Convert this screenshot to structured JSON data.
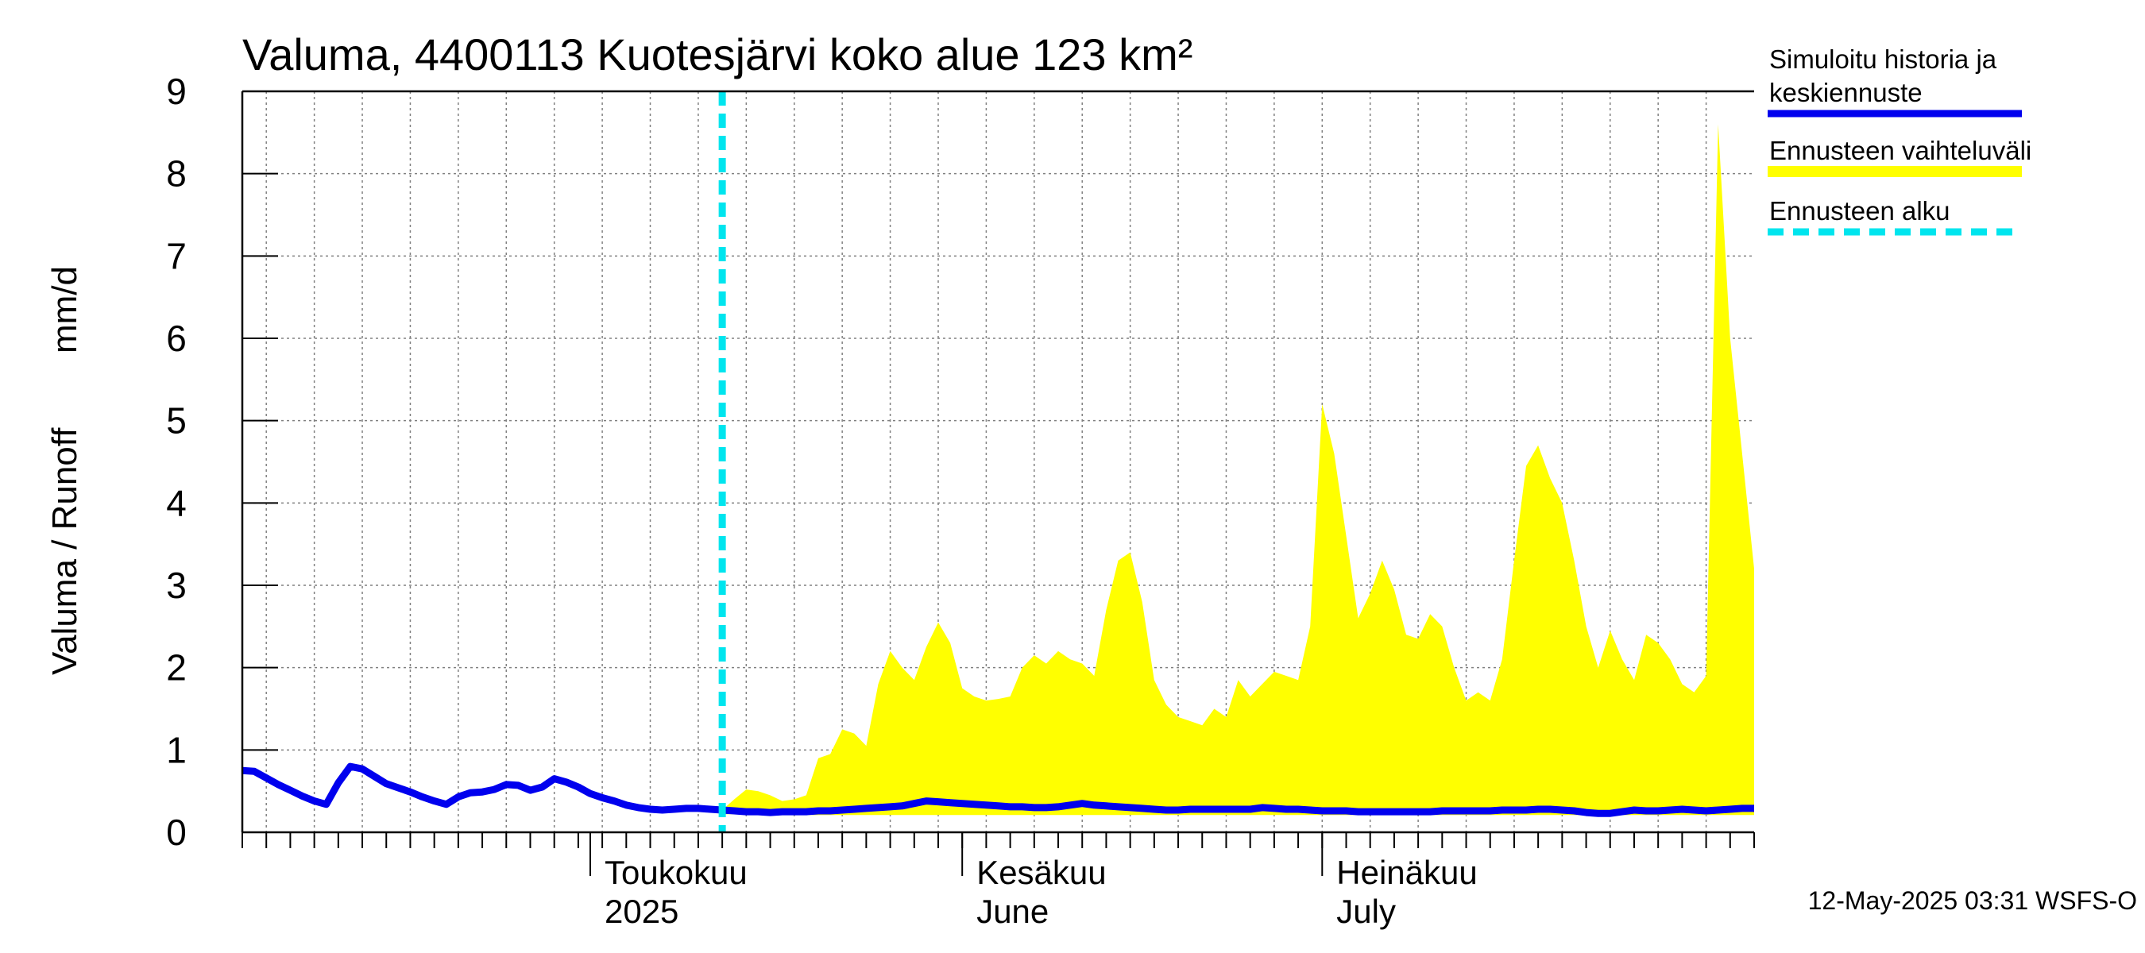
{
  "chart_data": {
    "type": "area",
    "title": "Valuma, 4400113 Kuotesjärvi koko alue 123 km²",
    "ylabel_fi": "Valuma / Runoff",
    "ylabel_unit": "mm/d",
    "ylim": [
      0,
      9
    ],
    "yticks": [
      "0",
      "1",
      "2",
      "3",
      "4",
      "5",
      "6",
      "7",
      "8",
      "9"
    ],
    "xlim": [
      "2025-04-02",
      "2025-07-31"
    ],
    "month_labels": [
      {
        "line1": "Toukokuu",
        "line2": "2025",
        "date": "2025-05-01"
      },
      {
        "line1": "Kesäkuu",
        "line2": "June",
        "date": "2025-06-01"
      },
      {
        "line1": "Heinäkuu",
        "line2": "July",
        "date": "2025-07-01"
      }
    ],
    "forecast_start": "2025-05-12",
    "grid": true,
    "legend_position": "right",
    "legend": [
      {
        "label_line1": "Simuloitu historia ja",
        "label_line2": "keskiennuste",
        "color": "#0000ee",
        "style": "solid"
      },
      {
        "label_line1": "Ennusteen vaihteluväli",
        "label_line2": "",
        "color": "#ffff00",
        "style": "band"
      },
      {
        "label_line1": "Ennusteen alku",
        "label_line2": "",
        "color": "#00e5ee",
        "style": "dashed"
      }
    ],
    "series": [
      {
        "name": "Simuloitu historia ja keskiennuste",
        "color": "#0000ee",
        "points": [
          [
            "2025-04-02",
            0.75
          ],
          [
            "2025-04-03",
            0.74
          ],
          [
            "2025-04-04",
            0.66
          ],
          [
            "2025-04-05",
            0.58
          ],
          [
            "2025-04-06",
            0.51
          ],
          [
            "2025-04-07",
            0.44
          ],
          [
            "2025-04-08",
            0.38
          ],
          [
            "2025-04-09",
            0.34
          ],
          [
            "2025-04-10",
            0.6
          ],
          [
            "2025-04-11",
            0.8
          ],
          [
            "2025-04-12",
            0.77
          ],
          [
            "2025-04-13",
            0.68
          ],
          [
            "2025-04-14",
            0.59
          ],
          [
            "2025-04-15",
            0.54
          ],
          [
            "2025-04-16",
            0.49
          ],
          [
            "2025-04-17",
            0.43
          ],
          [
            "2025-04-18",
            0.38
          ],
          [
            "2025-04-19",
            0.34
          ],
          [
            "2025-04-20",
            0.43
          ],
          [
            "2025-04-21",
            0.48
          ],
          [
            "2025-04-22",
            0.49
          ],
          [
            "2025-04-23",
            0.52
          ],
          [
            "2025-04-24",
            0.58
          ],
          [
            "2025-04-25",
            0.57
          ],
          [
            "2025-04-26",
            0.51
          ],
          [
            "2025-04-27",
            0.55
          ],
          [
            "2025-04-28",
            0.65
          ],
          [
            "2025-04-29",
            0.61
          ],
          [
            "2025-04-30",
            0.55
          ],
          [
            "2025-05-01",
            0.47
          ],
          [
            "2025-05-02",
            0.42
          ],
          [
            "2025-05-03",
            0.38
          ],
          [
            "2025-05-04",
            0.33
          ],
          [
            "2025-05-05",
            0.3
          ],
          [
            "2025-05-06",
            0.28
          ],
          [
            "2025-05-07",
            0.27
          ],
          [
            "2025-05-08",
            0.28
          ],
          [
            "2025-05-09",
            0.29
          ],
          [
            "2025-05-10",
            0.29
          ],
          [
            "2025-05-11",
            0.28
          ],
          [
            "2025-05-12",
            0.27
          ],
          [
            "2025-05-13",
            0.26
          ],
          [
            "2025-05-14",
            0.25
          ],
          [
            "2025-05-15",
            0.25
          ],
          [
            "2025-05-16",
            0.24
          ],
          [
            "2025-05-17",
            0.25
          ],
          [
            "2025-05-18",
            0.25
          ],
          [
            "2025-05-19",
            0.25
          ],
          [
            "2025-05-20",
            0.26
          ],
          [
            "2025-05-21",
            0.26
          ],
          [
            "2025-05-22",
            0.27
          ],
          [
            "2025-05-23",
            0.28
          ],
          [
            "2025-05-24",
            0.29
          ],
          [
            "2025-05-25",
            0.3
          ],
          [
            "2025-05-26",
            0.31
          ],
          [
            "2025-05-27",
            0.32
          ],
          [
            "2025-05-28",
            0.35
          ],
          [
            "2025-05-29",
            0.38
          ],
          [
            "2025-05-30",
            0.37
          ],
          [
            "2025-05-31",
            0.36
          ],
          [
            "2025-06-01",
            0.35
          ],
          [
            "2025-06-02",
            0.34
          ],
          [
            "2025-06-03",
            0.33
          ],
          [
            "2025-06-04",
            0.32
          ],
          [
            "2025-06-05",
            0.31
          ],
          [
            "2025-06-06",
            0.31
          ],
          [
            "2025-06-07",
            0.3
          ],
          [
            "2025-06-08",
            0.3
          ],
          [
            "2025-06-09",
            0.31
          ],
          [
            "2025-06-10",
            0.33
          ],
          [
            "2025-06-11",
            0.35
          ],
          [
            "2025-06-12",
            0.33
          ],
          [
            "2025-06-13",
            0.32
          ],
          [
            "2025-06-14",
            0.31
          ],
          [
            "2025-06-15",
            0.3
          ],
          [
            "2025-06-16",
            0.29
          ],
          [
            "2025-06-17",
            0.28
          ],
          [
            "2025-06-18",
            0.27
          ],
          [
            "2025-06-19",
            0.27
          ],
          [
            "2025-06-20",
            0.28
          ],
          [
            "2025-06-21",
            0.28
          ],
          [
            "2025-06-22",
            0.28
          ],
          [
            "2025-06-23",
            0.28
          ],
          [
            "2025-06-24",
            0.28
          ],
          [
            "2025-06-25",
            0.28
          ],
          [
            "2025-06-26",
            0.3
          ],
          [
            "2025-06-27",
            0.29
          ],
          [
            "2025-06-28",
            0.28
          ],
          [
            "2025-06-29",
            0.28
          ],
          [
            "2025-06-30",
            0.27
          ],
          [
            "2025-07-01",
            0.26
          ],
          [
            "2025-07-02",
            0.26
          ],
          [
            "2025-07-03",
            0.26
          ],
          [
            "2025-07-04",
            0.25
          ],
          [
            "2025-07-05",
            0.25
          ],
          [
            "2025-07-06",
            0.25
          ],
          [
            "2025-07-07",
            0.25
          ],
          [
            "2025-07-08",
            0.25
          ],
          [
            "2025-07-09",
            0.25
          ],
          [
            "2025-07-10",
            0.25
          ],
          [
            "2025-07-11",
            0.26
          ],
          [
            "2025-07-12",
            0.26
          ],
          [
            "2025-07-13",
            0.26
          ],
          [
            "2025-07-14",
            0.26
          ],
          [
            "2025-07-15",
            0.26
          ],
          [
            "2025-07-16",
            0.27
          ],
          [
            "2025-07-17",
            0.27
          ],
          [
            "2025-07-18",
            0.27
          ],
          [
            "2025-07-19",
            0.28
          ],
          [
            "2025-07-20",
            0.28
          ],
          [
            "2025-07-21",
            0.27
          ],
          [
            "2025-07-22",
            0.26
          ],
          [
            "2025-07-23",
            0.24
          ],
          [
            "2025-07-24",
            0.23
          ],
          [
            "2025-07-25",
            0.23
          ],
          [
            "2025-07-26",
            0.25
          ],
          [
            "2025-07-27",
            0.27
          ],
          [
            "2025-07-28",
            0.26
          ],
          [
            "2025-07-29",
            0.26
          ],
          [
            "2025-07-30",
            0.27
          ],
          [
            "2025-07-31",
            0.28
          ],
          [
            "2025-08-01",
            0.27
          ],
          [
            "2025-08-02",
            0.26
          ],
          [
            "2025-08-03",
            0.27
          ],
          [
            "2025-08-04",
            0.28
          ],
          [
            "2025-08-05",
            0.29
          ],
          [
            "2025-08-06",
            0.29
          ]
        ]
      },
      {
        "name": "Ennusteen vaihteluväli",
        "color": "#ffff00",
        "points": [
          [
            "2025-05-12",
            0.22,
            0.27
          ],
          [
            "2025-05-13",
            0.22,
            0.4
          ],
          [
            "2025-05-14",
            0.22,
            0.52
          ],
          [
            "2025-05-15",
            0.22,
            0.5
          ],
          [
            "2025-05-16",
            0.21,
            0.45
          ],
          [
            "2025-05-17",
            0.21,
            0.38
          ],
          [
            "2025-05-18",
            0.21,
            0.4
          ],
          [
            "2025-05-19",
            0.21,
            0.45
          ],
          [
            "2025-05-20",
            0.21,
            0.9
          ],
          [
            "2025-05-21",
            0.21,
            0.95
          ],
          [
            "2025-05-22",
            0.21,
            1.25
          ],
          [
            "2025-05-23",
            0.21,
            1.2
          ],
          [
            "2025-05-24",
            0.21,
            1.05
          ],
          [
            "2025-05-25",
            0.21,
            1.8
          ],
          [
            "2025-05-26",
            0.21,
            2.2
          ],
          [
            "2025-05-27",
            0.21,
            2.0
          ],
          [
            "2025-05-28",
            0.21,
            1.85
          ],
          [
            "2025-05-29",
            0.21,
            2.25
          ],
          [
            "2025-05-30",
            0.21,
            2.55
          ],
          [
            "2025-05-31",
            0.21,
            2.3
          ],
          [
            "2025-06-01",
            0.21,
            1.75
          ],
          [
            "2025-06-02",
            0.21,
            1.65
          ],
          [
            "2025-06-03",
            0.21,
            1.6
          ],
          [
            "2025-06-04",
            0.21,
            1.62
          ],
          [
            "2025-06-05",
            0.21,
            1.65
          ],
          [
            "2025-06-06",
            0.21,
            2.0
          ],
          [
            "2025-06-07",
            0.21,
            2.15
          ],
          [
            "2025-06-08",
            0.21,
            2.05
          ],
          [
            "2025-06-09",
            0.21,
            2.2
          ],
          [
            "2025-06-10",
            0.21,
            2.1
          ],
          [
            "2025-06-11",
            0.21,
            2.05
          ],
          [
            "2025-06-12",
            0.21,
            1.9
          ],
          [
            "2025-06-13",
            0.21,
            2.7
          ],
          [
            "2025-06-14",
            0.21,
            3.3
          ],
          [
            "2025-06-15",
            0.21,
            3.4
          ],
          [
            "2025-06-16",
            0.21,
            2.8
          ],
          [
            "2025-06-17",
            0.21,
            1.85
          ],
          [
            "2025-06-18",
            0.21,
            1.55
          ],
          [
            "2025-06-19",
            0.21,
            1.4
          ],
          [
            "2025-06-20",
            0.21,
            1.35
          ],
          [
            "2025-06-21",
            0.21,
            1.3
          ],
          [
            "2025-06-22",
            0.21,
            1.5
          ],
          [
            "2025-06-23",
            0.21,
            1.4
          ],
          [
            "2025-06-24",
            0.21,
            1.85
          ],
          [
            "2025-06-25",
            0.21,
            1.65
          ],
          [
            "2025-06-26",
            0.21,
            1.8
          ],
          [
            "2025-06-27",
            0.21,
            1.95
          ],
          [
            "2025-06-28",
            0.21,
            1.9
          ],
          [
            "2025-06-29",
            0.21,
            1.85
          ],
          [
            "2025-06-30",
            0.21,
            2.5
          ],
          [
            "2025-07-01",
            0.21,
            5.2
          ],
          [
            "2025-07-02",
            0.21,
            4.6
          ],
          [
            "2025-07-03",
            0.21,
            3.6
          ],
          [
            "2025-07-04",
            0.21,
            2.6
          ],
          [
            "2025-07-05",
            0.21,
            2.9
          ],
          [
            "2025-07-06",
            0.21,
            3.3
          ],
          [
            "2025-07-07",
            0.21,
            2.95
          ],
          [
            "2025-07-08",
            0.21,
            2.4
          ],
          [
            "2025-07-09",
            0.21,
            2.35
          ],
          [
            "2025-07-10",
            0.21,
            2.65
          ],
          [
            "2025-07-11",
            0.21,
            2.5
          ],
          [
            "2025-07-12",
            0.21,
            2.0
          ],
          [
            "2025-07-13",
            0.21,
            1.6
          ],
          [
            "2025-07-14",
            0.21,
            1.7
          ],
          [
            "2025-07-15",
            0.21,
            1.6
          ],
          [
            "2025-07-16",
            0.21,
            2.1
          ],
          [
            "2025-07-17",
            0.21,
            3.3
          ],
          [
            "2025-07-18",
            0.21,
            4.45
          ],
          [
            "2025-07-19",
            0.21,
            4.7
          ],
          [
            "2025-07-20",
            0.21,
            4.3
          ],
          [
            "2025-07-21",
            0.21,
            4.0
          ],
          [
            "2025-07-22",
            0.21,
            3.3
          ],
          [
            "2025-07-23",
            0.21,
            2.5
          ],
          [
            "2025-07-24",
            0.21,
            2.0
          ],
          [
            "2025-07-25",
            0.21,
            2.45
          ],
          [
            "2025-07-26",
            0.21,
            2.1
          ],
          [
            "2025-07-27",
            0.21,
            1.85
          ],
          [
            "2025-07-28",
            0.21,
            2.4
          ],
          [
            "2025-07-29",
            0.21,
            2.3
          ],
          [
            "2025-07-30",
            0.21,
            2.1
          ],
          [
            "2025-07-31",
            0.21,
            1.8
          ],
          [
            "2025-08-01",
            0.21,
            1.7
          ],
          [
            "2025-08-02",
            0.21,
            1.9
          ],
          [
            "2025-08-03",
            0.21,
            8.6
          ],
          [
            "2025-08-04",
            0.21,
            6.0
          ],
          [
            "2025-08-05",
            0.21,
            4.6
          ],
          [
            "2025-08-06",
            0.21,
            3.2
          ]
        ]
      }
    ]
  },
  "footer": "12-May-2025 03:31 WSFS-O"
}
